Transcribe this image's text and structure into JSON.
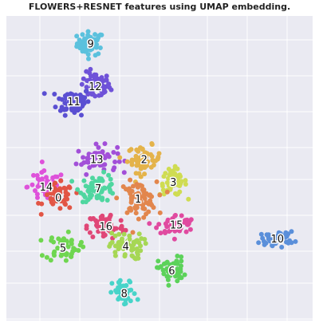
{
  "title": "FLOWERS+RESNET features using UMAP embedding.",
  "colors": {
    "background": "#EAEAF2",
    "grid": "#FFFFFF",
    "label_halo": "#FFFFFF"
  },
  "chart_data": {
    "type": "scatter",
    "title": "FLOWERS+RESNET features using UMAP embedding.",
    "xlabel": "",
    "ylabel": "",
    "grid": true,
    "legend": "none",
    "xlim": [
      0,
      10
    ],
    "ylim": [
      0,
      10
    ],
    "clusters": [
      {
        "label": "9",
        "color": "#5BC1DD",
        "center": [
          2.75,
          9.1
        ],
        "spread": [
          0.4,
          0.35
        ],
        "count": 55
      },
      {
        "label": "12",
        "color": "#6F52D8",
        "center": [
          2.9,
          7.7
        ],
        "spread": [
          0.45,
          0.4
        ],
        "count": 60
      },
      {
        "label": "11",
        "color": "#5A4FD2",
        "center": [
          2.2,
          7.2
        ],
        "spread": [
          0.5,
          0.4
        ],
        "count": 70
      },
      {
        "label": "13",
        "color": "#A24FD8",
        "center": [
          2.95,
          5.3
        ],
        "spread": [
          0.6,
          0.4
        ],
        "count": 55
      },
      {
        "label": "2",
        "color": "#E4B34A",
        "center": [
          4.5,
          5.3
        ],
        "spread": [
          0.5,
          0.4
        ],
        "count": 55
      },
      {
        "label": "3",
        "color": "#CFDC52",
        "center": [
          5.45,
          4.55
        ],
        "spread": [
          0.4,
          0.4
        ],
        "count": 55
      },
      {
        "label": "14",
        "color": "#DE52DA",
        "center": [
          1.3,
          4.4
        ],
        "spread": [
          0.55,
          0.45
        ],
        "count": 60
      },
      {
        "label": "0",
        "color": "#E25545",
        "center": [
          1.7,
          4.05
        ],
        "spread": [
          0.45,
          0.4
        ],
        "count": 45
      },
      {
        "label": "7",
        "color": "#4FD6A0",
        "center": [
          3.0,
          4.35
        ],
        "spread": [
          0.55,
          0.4
        ],
        "count": 60
      },
      {
        "label": "1",
        "color": "#E2864D",
        "center": [
          4.3,
          4.0
        ],
        "spread": [
          0.55,
          0.5
        ],
        "count": 70
      },
      {
        "label": "16",
        "color": "#E04777",
        "center": [
          3.25,
          3.1
        ],
        "spread": [
          0.55,
          0.4
        ],
        "count": 65
      },
      {
        "label": "15",
        "color": "#E04AA0",
        "center": [
          5.55,
          3.15
        ],
        "spread": [
          0.55,
          0.3
        ],
        "count": 55
      },
      {
        "label": "5",
        "color": "#6FD650",
        "center": [
          1.85,
          2.4
        ],
        "spread": [
          0.5,
          0.4
        ],
        "count": 55
      },
      {
        "label": "4",
        "color": "#A6D755",
        "center": [
          3.9,
          2.45
        ],
        "spread": [
          0.5,
          0.4
        ],
        "count": 55
      },
      {
        "label": "6",
        "color": "#5CD25A",
        "center": [
          5.4,
          1.65
        ],
        "spread": [
          0.4,
          0.4
        ],
        "count": 50
      },
      {
        "label": "8",
        "color": "#47D4C9",
        "center": [
          3.85,
          0.9
        ],
        "spread": [
          0.35,
          0.4
        ],
        "count": 45
      },
      {
        "label": "10",
        "color": "#5A8FDA",
        "center": [
          8.85,
          2.7
        ],
        "spread": [
          0.5,
          0.2
        ],
        "count": 45
      }
    ]
  }
}
